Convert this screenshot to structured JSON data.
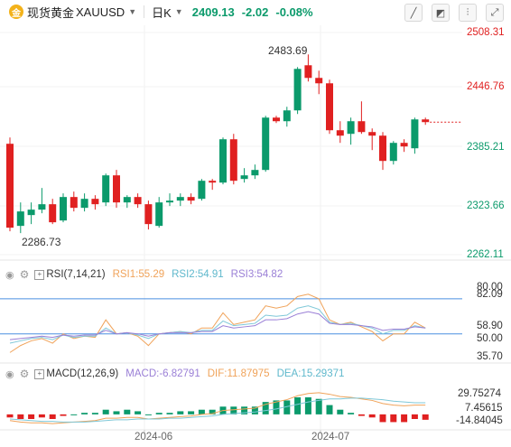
{
  "toolbar": {
    "symbol_name": "现货黄金",
    "symbol_code": "XAUUSD",
    "period": "日K",
    "price": "2409.13",
    "change": "-2.02",
    "change_pct": "-0.08%",
    "logo_glyph": "金"
  },
  "colors": {
    "up": "#0b9a6b",
    "down": "#e02020",
    "rsi1": "#f0a35a",
    "rsi2": "#7fc8d8",
    "rsi3": "#9a7fd6",
    "dif": "#f0a35a",
    "dea": "#7fc8d8",
    "level": "#4a8fe0"
  },
  "price_axis": {
    "ticks": [
      "2508.31",
      "2446.76",
      "2385.21",
      "2323.66",
      "2262.11"
    ]
  },
  "annotations": {
    "high": "2483.69",
    "low": "2286.73"
  },
  "rsi": {
    "title": "RSI(7,14,21)",
    "rsi1": "RSI1:55.29",
    "rsi2": "RSI2:54.91",
    "rsi3": "RSI3:54.82",
    "ticks": [
      "80.00",
      "82.09",
      "58.90",
      "50.00",
      "35.70"
    ]
  },
  "macd": {
    "title": "MACD(12,26,9)",
    "macd": "MACD:-6.82791",
    "dif": "DIF:11.87975",
    "dea": "DEA:15.29371",
    "ticks": [
      "29.75274",
      "7.45615",
      "-14.84045"
    ]
  },
  "x_axis": {
    "labels": [
      "2024-06",
      "2024-07"
    ]
  },
  "chart_data": {
    "type": "candlestick",
    "candles": [
      {
        "o": 2385,
        "h": 2392,
        "l": 2288,
        "c": 2292
      },
      {
        "o": 2294,
        "h": 2320,
        "l": 2286,
        "c": 2310
      },
      {
        "o": 2306,
        "h": 2320,
        "l": 2296,
        "c": 2312
      },
      {
        "o": 2312,
        "h": 2336,
        "l": 2308,
        "c": 2318
      },
      {
        "o": 2318,
        "h": 2324,
        "l": 2296,
        "c": 2298
      },
      {
        "o": 2300,
        "h": 2330,
        "l": 2298,
        "c": 2326
      },
      {
        "o": 2326,
        "h": 2332,
        "l": 2310,
        "c": 2314
      },
      {
        "o": 2314,
        "h": 2330,
        "l": 2310,
        "c": 2324
      },
      {
        "o": 2324,
        "h": 2328,
        "l": 2312,
        "c": 2318
      },
      {
        "o": 2320,
        "h": 2352,
        "l": 2316,
        "c": 2350
      },
      {
        "o": 2350,
        "h": 2356,
        "l": 2314,
        "c": 2320
      },
      {
        "o": 2320,
        "h": 2328,
        "l": 2314,
        "c": 2326
      },
      {
        "o": 2326,
        "h": 2330,
        "l": 2314,
        "c": 2318
      },
      {
        "o": 2318,
        "h": 2322,
        "l": 2290,
        "c": 2296
      },
      {
        "o": 2294,
        "h": 2326,
        "l": 2292,
        "c": 2320
      },
      {
        "o": 2320,
        "h": 2330,
        "l": 2316,
        "c": 2322
      },
      {
        "o": 2322,
        "h": 2330,
        "l": 2316,
        "c": 2326
      },
      {
        "o": 2326,
        "h": 2330,
        "l": 2318,
        "c": 2322
      },
      {
        "o": 2324,
        "h": 2346,
        "l": 2322,
        "c": 2344
      },
      {
        "o": 2344,
        "h": 2346,
        "l": 2334,
        "c": 2342
      },
      {
        "o": 2342,
        "h": 2392,
        "l": 2340,
        "c": 2390
      },
      {
        "o": 2390,
        "h": 2396,
        "l": 2340,
        "c": 2344
      },
      {
        "o": 2346,
        "h": 2358,
        "l": 2342,
        "c": 2350
      },
      {
        "o": 2350,
        "h": 2362,
        "l": 2346,
        "c": 2356
      },
      {
        "o": 2356,
        "h": 2416,
        "l": 2354,
        "c": 2414
      },
      {
        "o": 2414,
        "h": 2416,
        "l": 2408,
        "c": 2410
      },
      {
        "o": 2410,
        "h": 2426,
        "l": 2404,
        "c": 2422
      },
      {
        "o": 2422,
        "h": 2470,
        "l": 2418,
        "c": 2468
      },
      {
        "o": 2472,
        "h": 2484,
        "l": 2454,
        "c": 2458
      },
      {
        "o": 2458,
        "h": 2466,
        "l": 2440,
        "c": 2452
      },
      {
        "o": 2452,
        "h": 2456,
        "l": 2396,
        "c": 2400
      },
      {
        "o": 2400,
        "h": 2410,
        "l": 2386,
        "c": 2394
      },
      {
        "o": 2396,
        "h": 2414,
        "l": 2384,
        "c": 2410
      },
      {
        "o": 2410,
        "h": 2432,
        "l": 2396,
        "c": 2398
      },
      {
        "o": 2398,
        "h": 2402,
        "l": 2378,
        "c": 2394
      },
      {
        "o": 2394,
        "h": 2398,
        "l": 2356,
        "c": 2366
      },
      {
        "o": 2366,
        "h": 2388,
        "l": 2362,
        "c": 2386
      },
      {
        "o": 2386,
        "h": 2390,
        "l": 2376,
        "c": 2382
      },
      {
        "o": 2380,
        "h": 2414,
        "l": 2374,
        "c": 2412
      },
      {
        "o": 2412,
        "h": 2414,
        "l": 2406,
        "c": 2409
      }
    ],
    "ylim": [
      2262.11,
      2508.31
    ],
    "rsi_series": [
      {
        "name": "RSI1",
        "values": [
          34,
          40,
          44,
          46,
          42,
          50,
          46,
          48,
          47,
          62,
          50,
          51,
          48,
          40,
          50,
          51,
          52,
          50,
          55,
          55,
          68,
          58,
          60,
          62,
          74,
          72,
          74,
          82,
          84,
          80,
          62,
          58,
          60,
          56,
          52,
          44,
          50,
          50,
          60,
          55
        ]
      },
      {
        "name": "RSI2",
        "values": [
          42,
          44,
          46,
          47,
          45,
          49,
          47,
          48,
          48,
          55,
          50,
          51,
          49,
          46,
          50,
          51,
          52,
          51,
          53,
          53,
          61,
          57,
          58,
          59,
          66,
          65,
          66,
          72,
          74,
          71,
          60,
          58,
          59,
          57,
          55,
          50,
          53,
          53,
          57,
          55
        ]
      },
      {
        "name": "RSI3",
        "values": [
          45,
          46,
          47,
          48,
          47,
          49,
          48,
          49,
          49,
          53,
          50,
          51,
          50,
          48,
          50,
          51,
          51,
          51,
          52,
          52,
          57,
          55,
          56,
          57,
          62,
          62,
          63,
          67,
          69,
          67,
          59,
          58,
          58,
          57,
          56,
          53,
          54,
          54,
          56,
          55
        ]
      }
    ],
    "rsi_ylim": [
      25,
      90
    ],
    "macd_series": {
      "dif": [
        -8,
        -10,
        -11,
        -11,
        -12,
        -11,
        -10,
        -9,
        -8,
        -5,
        -5,
        -4,
        -4,
        -6,
        -5,
        -4,
        -3,
        -2,
        0,
        1,
        5,
        6,
        7,
        8,
        13,
        16,
        19,
        24,
        27,
        28,
        26,
        23,
        22,
        20,
        18,
        14,
        12,
        11,
        12,
        12
      ],
      "dea": [
        -6,
        -7,
        -8,
        -9,
        -9,
        -10,
        -10,
        -10,
        -9,
        -8,
        -7,
        -7,
        -6,
        -6,
        -6,
        -5,
        -5,
        -4,
        -3,
        -2,
        0,
        1,
        2,
        3,
        5,
        7,
        10,
        13,
        16,
        18,
        20,
        20,
        21,
        21,
        20,
        19,
        17,
        16,
        15,
        15
      ],
      "hist": [
        -4,
        -6,
        -6,
        -4,
        -6,
        -2,
        0,
        2,
        2,
        6,
        4,
        6,
        4,
        0,
        2,
        2,
        4,
        4,
        6,
        6,
        10,
        10,
        10,
        10,
        16,
        18,
        18,
        22,
        22,
        20,
        12,
        6,
        2,
        -2,
        -4,
        -10,
        -10,
        -10,
        -6,
        -7
      ]
    },
    "macd_ylim": [
      -20,
      36
    ]
  }
}
